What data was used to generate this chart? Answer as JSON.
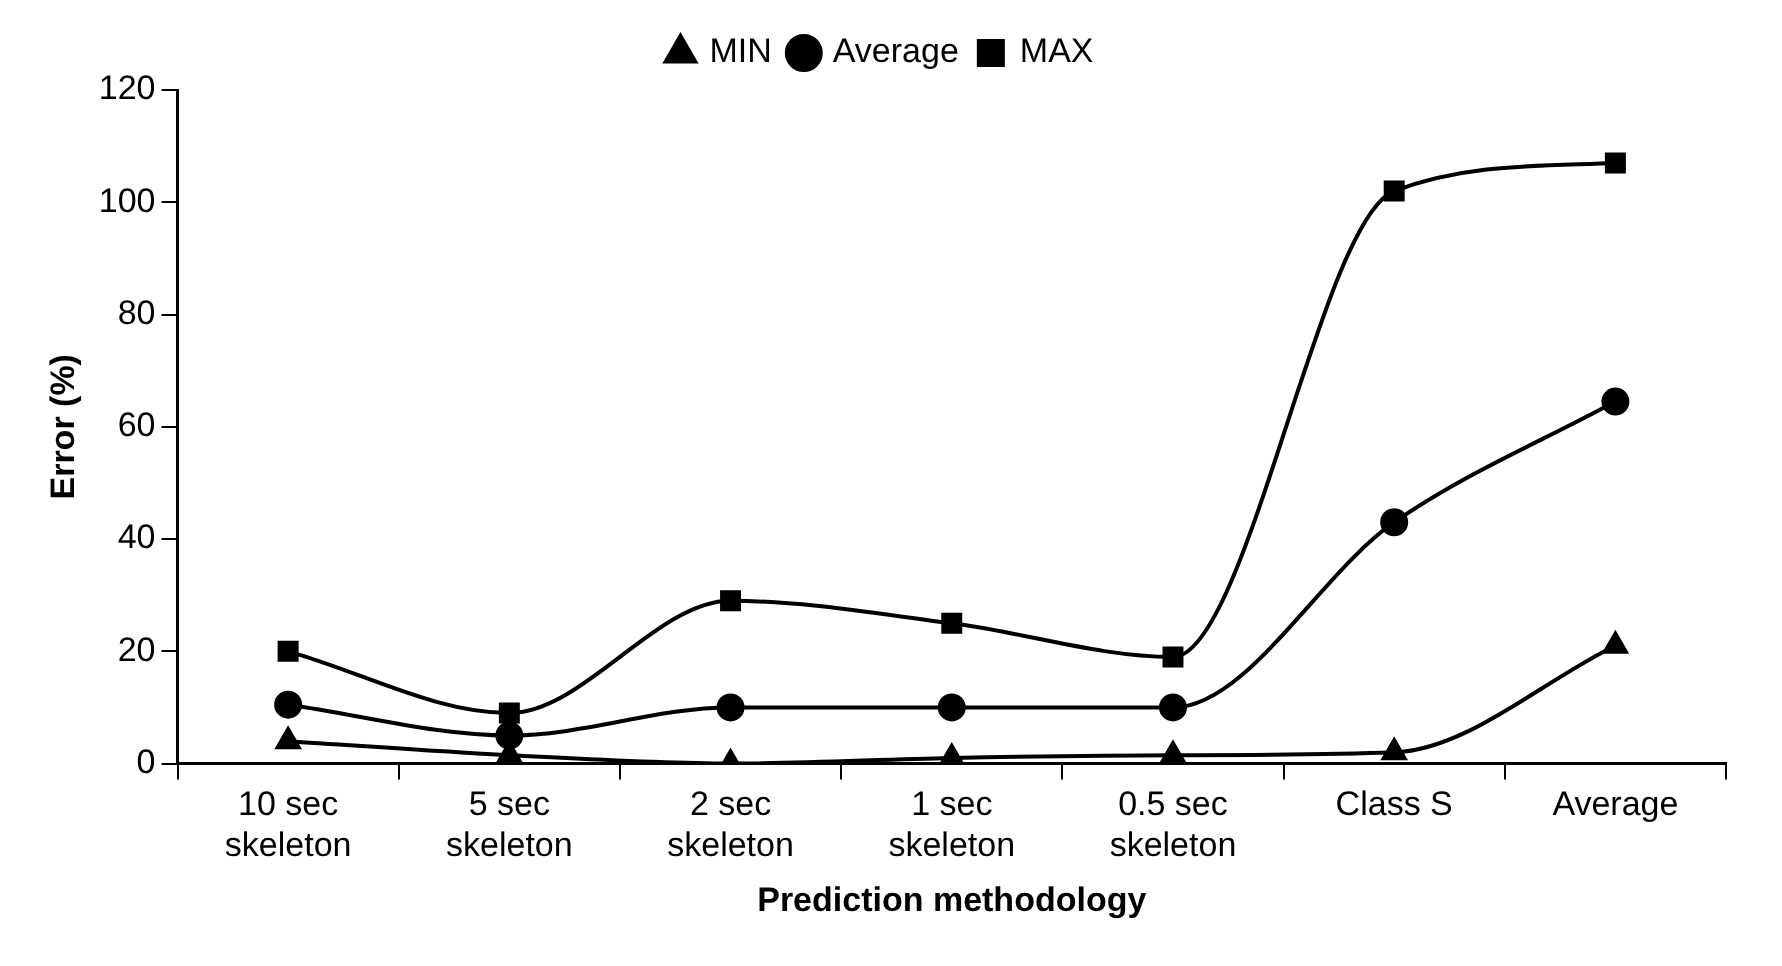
{
  "chart_data": {
    "type": "line",
    "xlabel": "Prediction methodology",
    "ylabel": "Error (%)",
    "categories": [
      "10 sec skeleton",
      "5 sec skeleton",
      "2 sec skeleton",
      "1 sec skeleton",
      "0.5 sec skeleton",
      "Class S",
      "Average"
    ],
    "series": [
      {
        "name": "MIN",
        "color": "#000000",
        "marker": "triangle",
        "values": [
          4,
          1.5,
          0,
          1,
          1.5,
          2,
          21
        ]
      },
      {
        "name": "Average",
        "color": "#000000",
        "marker": "circle",
        "values": [
          10.5,
          5,
          10,
          10,
          10,
          43,
          64.5
        ]
      },
      {
        "name": "MAX",
        "color": "#000000",
        "marker": "square",
        "values": [
          20,
          9,
          29,
          25,
          19,
          102,
          107
        ]
      }
    ],
    "ylim": [
      0,
      120
    ],
    "yticks": [
      0,
      20,
      40,
      60,
      80,
      100,
      120
    ],
    "grid": false,
    "legend": "top"
  }
}
